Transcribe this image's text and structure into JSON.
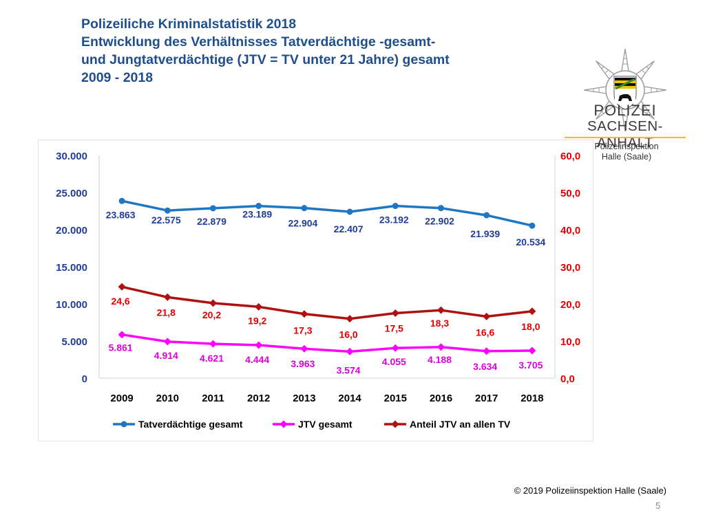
{
  "header": {
    "title_lines": [
      "Polizeiliche Kriminalstatistik 2018",
      "Entwicklung des Verhältnisses Tatverdächtige -gesamt-",
      "und Jungtatverdächtige (JTV = TV unter 21 Jahre) gesamt",
      "2009 - 2018"
    ]
  },
  "logo": {
    "icon": "police-star-badge-icon",
    "line1": "POLIZEI",
    "line2": "SACHSEN-ANHALT",
    "subline1": "Polizeiinspektion",
    "subline2": "Halle (Saale)",
    "colors": {
      "gold": "#f2c200",
      "green": "#3a8a3a",
      "star": "#9a9a9a"
    }
  },
  "chart_data": {
    "type": "line",
    "categories": [
      "2009",
      "2010",
      "2011",
      "2012",
      "2013",
      "2014",
      "2015",
      "2016",
      "2017",
      "2018"
    ],
    "y_left": {
      "range": [
        0,
        30000
      ],
      "ticks": [
        "0",
        "5.000",
        "10.000",
        "15.000",
        "20.000",
        "25.000",
        "30.000"
      ],
      "tick_values": [
        0,
        5000,
        10000,
        15000,
        20000,
        25000,
        30000
      ],
      "color": "#1f3d99"
    },
    "y_right": {
      "range": [
        0,
        60
      ],
      "ticks": [
        "0,0",
        "10,0",
        "20,0",
        "30,0",
        "40,0",
        "50,0",
        "60,0"
      ],
      "tick_values": [
        0,
        10,
        20,
        30,
        40,
        50,
        60
      ],
      "color": "#e00000"
    },
    "grid": false,
    "legend_position": "bottom",
    "series": [
      {
        "name": "Tatverdächtige gesamt",
        "axis": "left",
        "color": "#1f77c4",
        "label_color": "#1f3d99",
        "marker": "circle",
        "values": [
          23863,
          22575,
          22879,
          23189,
          22904,
          22407,
          23192,
          22902,
          21939,
          20534
        ],
        "labels": [
          "23.863",
          "22.575",
          "22.879",
          "23.189",
          "22.904",
          "22.407",
          "23.192",
          "22.902",
          "21.939",
          "20.534"
        ]
      },
      {
        "name": "JTV gesamt",
        "axis": "left",
        "color": "#ff00ff",
        "label_color": "#dd00dd",
        "marker": "diamond",
        "values": [
          5861,
          4914,
          4621,
          4444,
          3963,
          3574,
          4055,
          4188,
          3634,
          3705
        ],
        "labels": [
          "5.861",
          "4.914",
          "4.621",
          "4.444",
          "3.963",
          "3.574",
          "4.055",
          "4.188",
          "3.634",
          "3.705"
        ]
      },
      {
        "name": "Anteil JTV an allen TV",
        "axis": "right",
        "color": "#b01010",
        "label_color": "#e00000",
        "marker": "diamond",
        "values": [
          24.6,
          21.8,
          20.2,
          19.2,
          17.3,
          16.0,
          17.5,
          18.3,
          16.6,
          18.0
        ],
        "labels": [
          "24,6",
          "21,8",
          "20,2",
          "19,2",
          "17,3",
          "16,0",
          "17,5",
          "18,3",
          "16,6",
          "18,0"
        ]
      }
    ]
  },
  "footer": {
    "copyright": "© 2019 Polizeiinspektion Halle (Saale)",
    "page_number": "5"
  }
}
